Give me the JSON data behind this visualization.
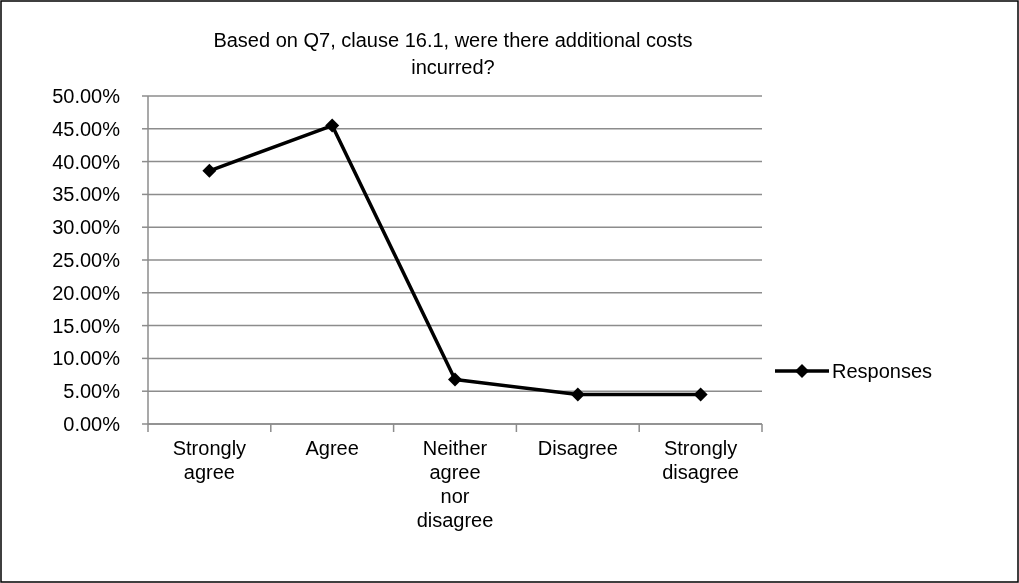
{
  "chart_data": {
    "type": "line",
    "title": "Based on Q7, clause 16.1, were there additional costs incurred?",
    "categories": [
      "Strongly agree",
      "Agree",
      "Neither agree nor disagree",
      "Disagree",
      "Strongly disagree"
    ],
    "series": [
      {
        "name": "Responses",
        "color": "#000000",
        "values": [
          38.6,
          45.5,
          6.8,
          4.5,
          4.5
        ]
      }
    ],
    "ylim": [
      0,
      50
    ],
    "yticks": [
      {
        "value": 0,
        "label": "0.00%"
      },
      {
        "value": 5,
        "label": "5.00%"
      },
      {
        "value": 10,
        "label": "10.00%"
      },
      {
        "value": 15,
        "label": "15.00%"
      },
      {
        "value": 20,
        "label": "20.00%"
      },
      {
        "value": 25,
        "label": "25.00%"
      },
      {
        "value": 30,
        "label": "30.00%"
      },
      {
        "value": 35,
        "label": "35.00%"
      },
      {
        "value": 40,
        "label": "40.00%"
      },
      {
        "value": 45,
        "label": "45.00%"
      },
      {
        "value": 50,
        "label": "50.00%"
      }
    ],
    "grid": "y",
    "legend": "right",
    "marker": "diamond",
    "line_style": "solid"
  }
}
